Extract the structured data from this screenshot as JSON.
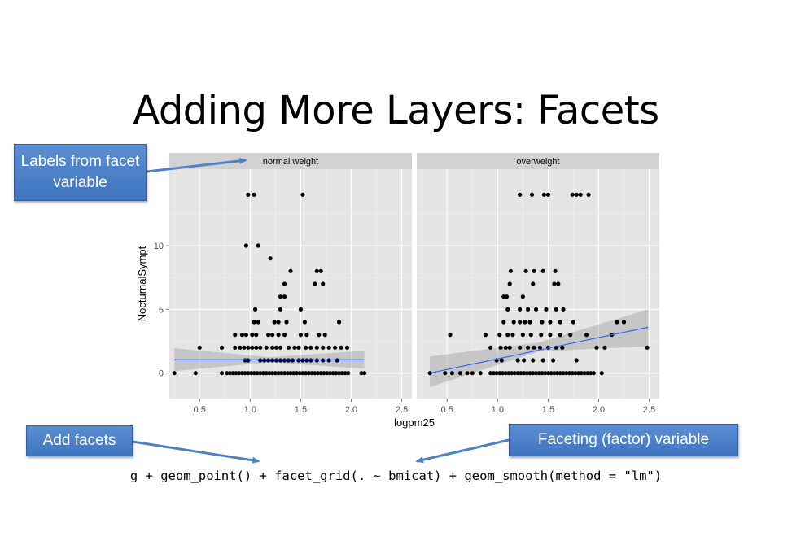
{
  "slide": {
    "title": "Adding More Layers: Facets",
    "code": "g + geom_point() + facet_grid(. ~ bmicat) + geom_smooth(method = \"lm\")"
  },
  "callouts": {
    "labels": "Labels from facet variable",
    "add_facets": "Add facets",
    "faceting": "Faceting (factor) variable"
  },
  "colors": {
    "panel_bg": "#e5e5e5",
    "strip_bg": "#d2d2d2",
    "grid": "#ffffff",
    "point": "#000000",
    "smooth_line": "#3366ff",
    "ribbon": "#999999",
    "callout": "#4f81c7"
  },
  "chart_data": {
    "type": "scatter",
    "title": "",
    "xlabel": "logpm25",
    "ylabel": "NocturnalSympt",
    "xlim": [
      0.2,
      2.6
    ],
    "ylim": [
      -2,
      16
    ],
    "xticks": [
      0.5,
      1.0,
      1.5,
      2.0,
      2.5
    ],
    "xtick_labels": [
      "0.5",
      "1.0",
      "1.5",
      "2.0",
      "2.5"
    ],
    "yticks": [
      0,
      5,
      10
    ],
    "ytick_labels": [
      "0",
      "5",
      "10"
    ],
    "grid": true,
    "facets": [
      {
        "label": "normal weight",
        "smooth": {
          "x0": 0.25,
          "y0": 1.05,
          "x1": 2.13,
          "y1": 1.05,
          "lo0": 0.15,
          "hi0": 1.95,
          "lomid": 0.85,
          "himid": 1.25,
          "lo1": 0.35,
          "hi1": 1.75
        },
        "points": [
          [
            0.25,
            0
          ],
          [
            0.46,
            0
          ],
          [
            0.72,
            0
          ],
          [
            0.77,
            0
          ],
          [
            0.8,
            0
          ],
          [
            0.83,
            0
          ],
          [
            0.86,
            0
          ],
          [
            0.89,
            0
          ],
          [
            0.92,
            0
          ],
          [
            0.95,
            0
          ],
          [
            0.98,
            0
          ],
          [
            1.01,
            0
          ],
          [
            1.04,
            0
          ],
          [
            1.07,
            0
          ],
          [
            1.1,
            0
          ],
          [
            1.13,
            0
          ],
          [
            1.16,
            0
          ],
          [
            1.19,
            0
          ],
          [
            1.22,
            0
          ],
          [
            1.25,
            0
          ],
          [
            1.28,
            0
          ],
          [
            1.31,
            0
          ],
          [
            1.34,
            0
          ],
          [
            1.37,
            0
          ],
          [
            1.4,
            0
          ],
          [
            1.43,
            0
          ],
          [
            1.46,
            0
          ],
          [
            1.49,
            0
          ],
          [
            1.52,
            0
          ],
          [
            1.55,
            0
          ],
          [
            1.58,
            0
          ],
          [
            1.61,
            0
          ],
          [
            1.64,
            0
          ],
          [
            1.67,
            0
          ],
          [
            1.7,
            0
          ],
          [
            1.73,
            0
          ],
          [
            1.76,
            0
          ],
          [
            1.79,
            0
          ],
          [
            1.82,
            0
          ],
          [
            1.85,
            0
          ],
          [
            1.88,
            0
          ],
          [
            1.91,
            0
          ],
          [
            1.94,
            0
          ],
          [
            1.97,
            0
          ],
          [
            2.1,
            0
          ],
          [
            2.13,
            0
          ],
          [
            0.95,
            1
          ],
          [
            0.98,
            1
          ],
          [
            1.1,
            1
          ],
          [
            1.14,
            1
          ],
          [
            1.18,
            1
          ],
          [
            1.22,
            1
          ],
          [
            1.26,
            1
          ],
          [
            1.3,
            1
          ],
          [
            1.34,
            1
          ],
          [
            1.38,
            1
          ],
          [
            1.42,
            1
          ],
          [
            1.48,
            1
          ],
          [
            1.52,
            1
          ],
          [
            1.56,
            1
          ],
          [
            1.6,
            1
          ],
          [
            1.66,
            1
          ],
          [
            1.72,
            1
          ],
          [
            1.78,
            1
          ],
          [
            1.86,
            1
          ],
          [
            0.5,
            2
          ],
          [
            0.72,
            2
          ],
          [
            0.85,
            2
          ],
          [
            0.9,
            2
          ],
          [
            0.94,
            2
          ],
          [
            0.98,
            2
          ],
          [
            1.02,
            2
          ],
          [
            1.06,
            2
          ],
          [
            1.1,
            2
          ],
          [
            1.16,
            2
          ],
          [
            1.22,
            2
          ],
          [
            1.26,
            2
          ],
          [
            1.3,
            2
          ],
          [
            1.38,
            2
          ],
          [
            1.44,
            2
          ],
          [
            1.48,
            2
          ],
          [
            1.55,
            2
          ],
          [
            1.6,
            2
          ],
          [
            1.66,
            2
          ],
          [
            1.72,
            2
          ],
          [
            1.78,
            2
          ],
          [
            1.84,
            2
          ],
          [
            1.9,
            2
          ],
          [
            1.96,
            2
          ],
          [
            0.85,
            3
          ],
          [
            0.92,
            3
          ],
          [
            0.96,
            3
          ],
          [
            1.02,
            3
          ],
          [
            1.06,
            3
          ],
          [
            1.18,
            3
          ],
          [
            1.22,
            3
          ],
          [
            1.28,
            3
          ],
          [
            1.34,
            3
          ],
          [
            1.5,
            3
          ],
          [
            1.56,
            3
          ],
          [
            1.68,
            3
          ],
          [
            1.74,
            3
          ],
          [
            1.04,
            4
          ],
          [
            1.08,
            4
          ],
          [
            1.24,
            4
          ],
          [
            1.28,
            4
          ],
          [
            1.36,
            4
          ],
          [
            1.54,
            4
          ],
          [
            1.88,
            4
          ],
          [
            1.05,
            5
          ],
          [
            1.3,
            5
          ],
          [
            1.5,
            5
          ],
          [
            1.3,
            6
          ],
          [
            1.34,
            6
          ],
          [
            1.34,
            7
          ],
          [
            1.64,
            7
          ],
          [
            1.72,
            7
          ],
          [
            1.4,
            8
          ],
          [
            1.66,
            8
          ],
          [
            1.7,
            8
          ],
          [
            1.2,
            9
          ],
          [
            0.96,
            10
          ],
          [
            1.08,
            10
          ],
          [
            0.98,
            14
          ],
          [
            1.04,
            14
          ],
          [
            1.52,
            14
          ]
        ]
      },
      {
        "label": "overweight",
        "smooth": {
          "x0": 0.33,
          "y0": 0.0,
          "x1": 2.49,
          "y1": 3.6,
          "lo0": -1.1,
          "hi0": 1.3,
          "lomid": 1.7,
          "himid": 2.4,
          "lo1": 2.1,
          "hi1": 5.0
        },
        "points": [
          [
            0.33,
            0
          ],
          [
            0.48,
            0
          ],
          [
            0.55,
            0
          ],
          [
            0.63,
            0
          ],
          [
            0.7,
            0
          ],
          [
            0.75,
            0
          ],
          [
            0.83,
            0
          ],
          [
            0.93,
            0
          ],
          [
            0.96,
            0
          ],
          [
            0.99,
            0
          ],
          [
            1.02,
            0
          ],
          [
            1.05,
            0
          ],
          [
            1.08,
            0
          ],
          [
            1.11,
            0
          ],
          [
            1.14,
            0
          ],
          [
            1.17,
            0
          ],
          [
            1.2,
            0
          ],
          [
            1.23,
            0
          ],
          [
            1.26,
            0
          ],
          [
            1.29,
            0
          ],
          [
            1.32,
            0
          ],
          [
            1.35,
            0
          ],
          [
            1.38,
            0
          ],
          [
            1.41,
            0
          ],
          [
            1.44,
            0
          ],
          [
            1.47,
            0
          ],
          [
            1.5,
            0
          ],
          [
            1.53,
            0
          ],
          [
            1.56,
            0
          ],
          [
            1.59,
            0
          ],
          [
            1.62,
            0
          ],
          [
            1.65,
            0
          ],
          [
            1.68,
            0
          ],
          [
            1.71,
            0
          ],
          [
            1.74,
            0
          ],
          [
            1.77,
            0
          ],
          [
            1.8,
            0
          ],
          [
            1.83,
            0
          ],
          [
            1.86,
            0
          ],
          [
            1.89,
            0
          ],
          [
            1.92,
            0
          ],
          [
            1.95,
            0
          ],
          [
            2.03,
            0
          ],
          [
            0.99,
            1
          ],
          [
            1.04,
            1
          ],
          [
            1.2,
            1
          ],
          [
            1.26,
            1
          ],
          [
            1.35,
            1
          ],
          [
            1.45,
            1
          ],
          [
            1.55,
            1
          ],
          [
            1.78,
            1
          ],
          [
            0.93,
            2
          ],
          [
            1.03,
            2
          ],
          [
            1.08,
            2
          ],
          [
            1.12,
            2
          ],
          [
            1.22,
            2
          ],
          [
            1.3,
            2
          ],
          [
            1.36,
            2
          ],
          [
            1.42,
            2
          ],
          [
            1.5,
            2
          ],
          [
            1.58,
            2
          ],
          [
            1.64,
            2
          ],
          [
            1.98,
            2
          ],
          [
            2.06,
            2
          ],
          [
            2.48,
            2
          ],
          [
            0.53,
            3
          ],
          [
            0.88,
            3
          ],
          [
            1.02,
            3
          ],
          [
            1.1,
            3
          ],
          [
            1.15,
            3
          ],
          [
            1.25,
            3
          ],
          [
            1.33,
            3
          ],
          [
            1.43,
            3
          ],
          [
            1.52,
            3
          ],
          [
            1.62,
            3
          ],
          [
            1.72,
            3
          ],
          [
            1.88,
            3
          ],
          [
            2.13,
            3
          ],
          [
            1.06,
            4
          ],
          [
            1.16,
            4
          ],
          [
            1.22,
            4
          ],
          [
            1.27,
            4
          ],
          [
            1.32,
            4
          ],
          [
            1.44,
            4
          ],
          [
            1.52,
            4
          ],
          [
            1.62,
            4
          ],
          [
            1.75,
            4
          ],
          [
            2.18,
            4
          ],
          [
            2.25,
            4
          ],
          [
            1.1,
            5
          ],
          [
            1.22,
            5
          ],
          [
            1.3,
            5
          ],
          [
            1.38,
            5
          ],
          [
            1.48,
            5
          ],
          [
            1.58,
            5
          ],
          [
            1.65,
            5
          ],
          [
            1.06,
            6
          ],
          [
            1.09,
            6
          ],
          [
            1.25,
            6
          ],
          [
            1.12,
            7
          ],
          [
            1.35,
            7
          ],
          [
            1.56,
            7
          ],
          [
            1.6,
            7
          ],
          [
            1.13,
            8
          ],
          [
            1.28,
            8
          ],
          [
            1.36,
            8
          ],
          [
            1.45,
            8
          ],
          [
            1.57,
            8
          ],
          [
            1.22,
            14
          ],
          [
            1.34,
            14
          ],
          [
            1.46,
            14
          ],
          [
            1.5,
            14
          ],
          [
            1.74,
            14
          ],
          [
            1.78,
            14
          ],
          [
            1.82,
            14
          ],
          [
            1.9,
            14
          ]
        ]
      }
    ]
  }
}
